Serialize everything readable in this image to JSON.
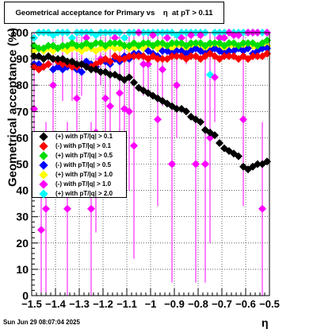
{
  "title": "Geometrical acceptance for Primary vs    η  at pT > 0.11",
  "timestamp": "Sun Jun 29 08:07:04 2025",
  "chart_data": {
    "type": "scatter",
    "xlabel": "η",
    "ylabel": "Geometrical acceptance (%)",
    "xlim": [
      -1.5,
      -0.5
    ],
    "ylim": [
      0,
      100
    ],
    "x_ticks": [
      "−1.5",
      "−1.4",
      "−1.3",
      "−1.2",
      "−1.1",
      "−1",
      "−0.9",
      "−0.8",
      "−0.7",
      "−0.6",
      "−0.5"
    ],
    "y_ticks": [
      "0",
      "10",
      "20",
      "30",
      "40",
      "50",
      "60",
      "70",
      "80",
      "90",
      "100"
    ],
    "grid": true,
    "legend_position": "left-middle",
    "series": [
      {
        "name": "(+) with pT/|q| > 0.1",
        "color": "#000000",
        "x": [
          -1.49,
          -1.47,
          -1.45,
          -1.43,
          -1.41,
          -1.39,
          -1.37,
          -1.35,
          -1.33,
          -1.31,
          -1.29,
          -1.27,
          -1.25,
          -1.23,
          -1.21,
          -1.19,
          -1.17,
          -1.15,
          -1.13,
          -1.11,
          -1.09,
          -1.07,
          -1.05,
          -1.03,
          -1.01,
          -0.99,
          -0.97,
          -0.95,
          -0.93,
          -0.91,
          -0.89,
          -0.87,
          -0.85,
          -0.83,
          -0.81,
          -0.79,
          -0.77,
          -0.75,
          -0.73,
          -0.71,
          -0.69,
          -0.67,
          -0.65,
          -0.63,
          -0.61,
          -0.59,
          -0.57,
          -0.55,
          -0.53,
          -0.51
        ],
        "y": [
          91,
          91,
          90,
          91,
          90,
          90,
          90,
          89,
          89,
          88,
          88,
          87,
          86,
          86,
          85,
          85,
          84,
          84,
          83,
          82,
          83,
          81,
          79,
          78,
          77,
          76,
          75,
          74,
          73,
          72,
          71,
          71,
          70,
          68,
          67,
          66,
          63,
          62,
          61,
          58,
          56,
          55,
          54,
          53,
          49,
          48,
          49,
          50,
          50,
          51
        ]
      },
      {
        "name": "(-) with pT/|q| > 0.1",
        "color": "#ff0000",
        "x": [
          -1.49,
          -1.47,
          -1.45,
          -1.43,
          -1.41,
          -1.39,
          -1.37,
          -1.35,
          -1.33,
          -1.31,
          -1.29,
          -1.27,
          -1.25,
          -1.23,
          -1.21,
          -1.19,
          -1.17,
          -1.15,
          -1.13,
          -1.11,
          -1.09,
          -1.07,
          -1.05,
          -1.03,
          -1.01,
          -0.99,
          -0.97,
          -0.95,
          -0.93,
          -0.91,
          -0.89,
          -0.87,
          -0.85,
          -0.83,
          -0.81,
          -0.79,
          -0.77,
          -0.75,
          -0.73,
          -0.71,
          -0.69,
          -0.67,
          -0.65,
          -0.63,
          -0.61,
          -0.59,
          -0.57,
          -0.55,
          -0.53,
          -0.51
        ],
        "y": [
          87,
          86,
          87,
          88,
          90,
          89,
          88,
          88,
          87,
          87,
          88,
          87,
          87,
          88,
          89,
          90,
          89,
          91,
          90,
          90,
          91,
          91,
          91,
          91,
          90,
          91,
          90,
          90,
          90,
          91,
          91,
          91,
          90,
          91,
          91,
          90,
          91,
          92,
          91,
          90,
          91,
          91,
          91,
          90,
          91,
          90,
          91,
          91,
          91,
          92
        ]
      },
      {
        "name": "(+) with pT/|q| > 0.5",
        "color": "#00dd00",
        "x": [
          -1.49,
          -1.47,
          -1.45,
          -1.43,
          -1.41,
          -1.39,
          -1.37,
          -1.35,
          -1.33,
          -1.31,
          -1.29,
          -1.27,
          -1.25,
          -1.23,
          -1.21,
          -1.19,
          -1.17,
          -1.15,
          -1.13,
          -1.11,
          -1.09,
          -1.07,
          -1.05,
          -1.03,
          -1.01,
          -0.99,
          -0.97,
          -0.95,
          -0.93,
          -0.91,
          -0.89,
          -0.87,
          -0.85,
          -0.83,
          -0.81,
          -0.79,
          -0.77,
          -0.75,
          -0.73,
          -0.71,
          -0.69,
          -0.67,
          -0.65,
          -0.63,
          -0.61,
          -0.59,
          -0.57,
          -0.55,
          -0.53,
          -0.51
        ],
        "y": [
          95,
          94,
          94,
          95,
          95,
          94,
          95,
          95,
          96,
          95,
          95,
          96,
          95,
          96,
          96,
          95,
          96,
          96,
          96,
          95,
          95,
          96,
          95,
          96,
          96,
          95,
          96,
          96,
          95,
          96,
          96,
          96,
          95,
          96,
          96,
          96,
          95,
          96,
          96,
          96,
          95,
          96,
          96,
          95,
          96,
          96,
          96,
          95,
          96,
          97
        ]
      },
      {
        "name": "(-) with pT/|q| > 0.5",
        "color": "#0000ff",
        "x": [
          -1.49,
          -1.47,
          -1.45,
          -1.43,
          -1.41,
          -1.39,
          -1.37,
          -1.35,
          -1.33,
          -1.31,
          -1.29,
          -1.27,
          -1.25,
          -1.23,
          -1.21,
          -1.19,
          -1.17,
          -1.15,
          -1.13,
          -1.11,
          -1.09,
          -1.07,
          -1.05,
          -1.03,
          -1.01,
          -0.99,
          -0.97,
          -0.95,
          -0.93,
          -0.91,
          -0.89,
          -0.87,
          -0.85,
          -0.83,
          -0.81,
          -0.79,
          -0.77,
          -0.75,
          -0.73,
          -0.71,
          -0.69,
          -0.67,
          -0.65,
          -0.63,
          -0.61,
          -0.59,
          -0.57,
          -0.55,
          -0.53,
          -0.51
        ],
        "y": [
          88,
          88,
          87,
          88,
          86,
          87,
          86,
          87,
          88,
          86,
          85,
          89,
          88,
          87,
          89,
          89,
          88,
          90,
          89,
          91,
          90,
          92,
          92,
          91,
          93,
          92,
          91,
          93,
          93,
          92,
          93,
          93,
          92,
          93,
          94,
          93,
          92,
          93,
          94,
          93,
          92,
          93,
          93,
          94,
          93,
          94,
          92,
          93,
          94,
          94
        ]
      },
      {
        "name": "(+) with pT/|q| > 1.0",
        "color": "#ffff00",
        "x": [
          -1.49,
          -1.47,
          -1.45,
          -1.43,
          -1.41,
          -1.39,
          -1.37,
          -1.35,
          -1.33,
          -1.31,
          -1.29,
          -1.27,
          -1.25,
          -1.23,
          -1.21,
          -1.19,
          -1.17,
          -1.15,
          -1.13,
          -1.11,
          -1.09,
          -1.07,
          -1.05,
          -1.03,
          -1.01,
          -0.99,
          -0.97,
          -0.95,
          -0.93,
          -0.91,
          -0.89,
          -0.87,
          -0.85,
          -0.83,
          -0.81,
          -0.79,
          -0.77,
          -0.75,
          -0.73,
          -0.71,
          -0.69,
          -0.67,
          -0.65,
          -0.63,
          -0.61,
          -0.59,
          -0.57,
          -0.55,
          -0.53,
          -0.51
        ],
        "y": [
          93,
          94,
          93,
          94,
          93,
          94,
          94,
          93,
          94,
          94,
          93,
          94,
          94,
          93,
          94,
          94,
          95,
          94,
          94,
          95,
          94,
          94,
          95,
          94,
          95,
          95,
          94,
          95,
          95,
          94,
          95,
          95,
          94,
          95,
          95,
          95,
          94,
          95,
          95,
          95,
          94,
          95,
          95,
          94,
          95,
          95,
          95,
          94,
          95,
          95
        ]
      },
      {
        "name": "(-) with pT/|q| > 1.0",
        "color": "#ff00ff",
        "x": [
          -1.49,
          -1.46,
          -1.44,
          -1.41,
          -1.37,
          -1.35,
          -1.33,
          -1.31,
          -1.29,
          -1.27,
          -1.25,
          -1.23,
          -1.21,
          -1.19,
          -1.17,
          -1.15,
          -1.13,
          -1.11,
          -1.09,
          -1.07,
          -1.05,
          -1.03,
          -1.01,
          -0.99,
          -0.97,
          -0.95,
          -0.93,
          -0.91,
          -0.89,
          -0.87,
          -0.85,
          -0.83,
          -0.81,
          -0.79,
          -0.77,
          -0.75,
          -0.73,
          -0.71,
          -0.69,
          -0.67,
          -0.65,
          -0.63,
          -0.61,
          -0.59,
          -0.57,
          -0.55,
          -0.53,
          -0.51
        ],
        "y": [
          71,
          25,
          33,
          80,
          87,
          33,
          87,
          75,
          88,
          98,
          33,
          62,
          90,
          75,
          72,
          98,
          77,
          71,
          70,
          57,
          100,
          88,
          88,
          99,
          67,
          86,
          98,
          50,
          80,
          98,
          94,
          99,
          50,
          99,
          50,
          60,
          83,
          98,
          98,
          100,
          99,
          99,
          67,
          100,
          100,
          100,
          33,
          100
        ]
      },
      {
        "name": "(+) with pT/|q| > 2.0",
        "color": "#00ffff",
        "x": [
          -1.49,
          -1.47,
          -1.45,
          -1.43,
          -1.41,
          -1.39,
          -1.37,
          -1.35,
          -1.33,
          -1.31,
          -1.29,
          -1.27,
          -1.25,
          -1.23,
          -1.21,
          -1.19,
          -1.17,
          -1.15,
          -1.13,
          -1.11,
          -1.09,
          -1.07,
          -1.05,
          -1.03,
          -1.01,
          -0.99,
          -0.97,
          -0.95,
          -0.93,
          -0.91,
          -0.89,
          -0.87,
          -0.85,
          -0.83,
          -0.81,
          -0.79,
          -0.77,
          -0.75,
          -0.73,
          -0.71,
          -0.69,
          -0.67,
          -0.65,
          -0.63,
          -0.61,
          -0.59,
          -0.57,
          -0.55,
          -0.53,
          -0.51
        ],
        "y": [
          98,
          100,
          100,
          100,
          99,
          100,
          100,
          100,
          98,
          100,
          100,
          100,
          100,
          99,
          100,
          100,
          100,
          100,
          100,
          98,
          100,
          100,
          100,
          100,
          100,
          100,
          100,
          100,
          100,
          100,
          99,
          100,
          100,
          100,
          100,
          100,
          100,
          84,
          100,
          100,
          100,
          100,
          100,
          100,
          100,
          100,
          100,
          100,
          100,
          100
        ]
      }
    ]
  }
}
